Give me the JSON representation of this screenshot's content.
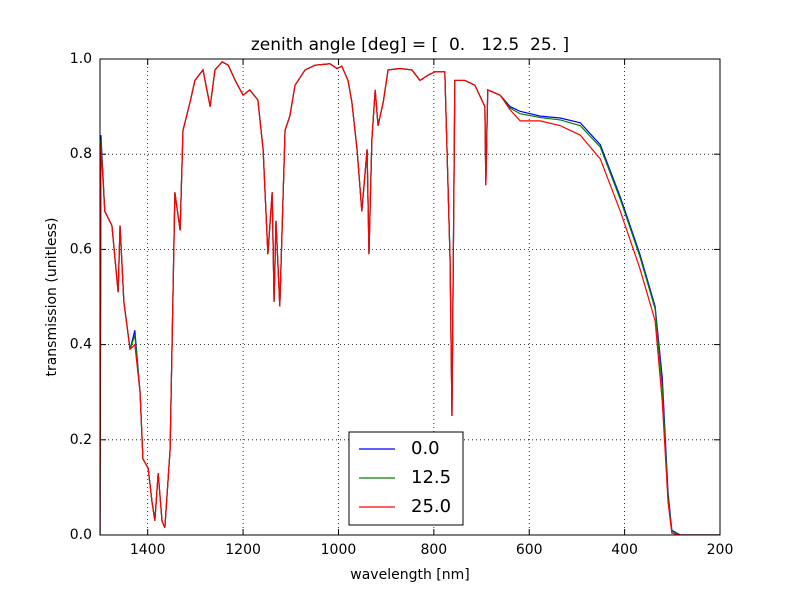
{
  "chart_data": {
    "type": "line",
    "title": "zenith angle [deg] = [  0.   12.5  25. ]",
    "xlabel": "wavelength [nm]",
    "ylabel": "transmission (unitless)",
    "xlim": [
      1500,
      200
    ],
    "ylim": [
      0,
      1
    ],
    "xticks": [
      1400,
      1200,
      1000,
      800,
      600,
      400,
      200
    ],
    "yticks": [
      {
        "value": 0,
        "label": "0.0"
      },
      0.2,
      0.4,
      0.6,
      0.8,
      {
        "value": 1,
        "label": "1.0"
      }
    ],
    "grid": true,
    "legend": "lower center",
    "x": [
      1500,
      1498,
      1490,
      1475,
      1462,
      1458,
      1450,
      1437,
      1427,
      1416,
      1410,
      1399,
      1391,
      1385,
      1378,
      1370,
      1364,
      1353,
      1343,
      1332,
      1326,
      1311,
      1301,
      1284,
      1269,
      1259,
      1244,
      1231,
      1217,
      1200,
      1186,
      1169,
      1158,
      1148,
      1139,
      1135,
      1131,
      1123,
      1112,
      1102,
      1091,
      1070,
      1049,
      1018,
      1003,
      993,
      980,
      972,
      961,
      951,
      940,
      936,
      930,
      923,
      917,
      906,
      896,
      871,
      846,
      829,
      812,
      798,
      777,
      766,
      762,
      756,
      735,
      714,
      693,
      691,
      687,
      661,
      640,
      619,
      577,
      535,
      493,
      451,
      409,
      368,
      336,
      321,
      309,
      301,
      283,
      200
    ],
    "series": [
      {
        "name": "0.0",
        "color": "#0000ff",
        "values": [
          0.0,
          0.84,
          0.68,
          0.65,
          0.51,
          0.65,
          0.49,
          0.39,
          0.43,
          0.3,
          0.16,
          0.14,
          0.07,
          0.03,
          0.13,
          0.03,
          0.015,
          0.18,
          0.72,
          0.64,
          0.85,
          0.91,
          0.955,
          0.977,
          0.9,
          0.977,
          0.994,
          0.987,
          0.956,
          0.924,
          0.935,
          0.914,
          0.81,
          0.59,
          0.72,
          0.49,
          0.66,
          0.48,
          0.85,
          0.88,
          0.945,
          0.977,
          0.987,
          0.99,
          0.98,
          0.985,
          0.955,
          0.91,
          0.81,
          0.68,
          0.81,
          0.59,
          0.83,
          0.935,
          0.86,
          0.91,
          0.977,
          0.98,
          0.977,
          0.955,
          0.966,
          0.973,
          0.973,
          0.58,
          0.25,
          0.955,
          0.955,
          0.945,
          0.9,
          0.735,
          0.935,
          0.924,
          0.9,
          0.89,
          0.88,
          0.876,
          0.866,
          0.82,
          0.71,
          0.59,
          0.48,
          0.33,
          0.09,
          0.01,
          0,
          0
        ]
      },
      {
        "name": "12.5",
        "color": "#008000",
        "values": [
          0.0,
          0.83,
          0.68,
          0.65,
          0.51,
          0.65,
          0.49,
          0.39,
          0.42,
          0.3,
          0.16,
          0.14,
          0.07,
          0.03,
          0.13,
          0.03,
          0.015,
          0.18,
          0.72,
          0.64,
          0.85,
          0.91,
          0.955,
          0.977,
          0.9,
          0.977,
          0.994,
          0.987,
          0.956,
          0.924,
          0.935,
          0.914,
          0.81,
          0.59,
          0.72,
          0.49,
          0.66,
          0.48,
          0.85,
          0.88,
          0.945,
          0.977,
          0.987,
          0.99,
          0.98,
          0.985,
          0.955,
          0.91,
          0.81,
          0.68,
          0.81,
          0.59,
          0.83,
          0.935,
          0.86,
          0.91,
          0.977,
          0.98,
          0.977,
          0.955,
          0.966,
          0.973,
          0.973,
          0.58,
          0.25,
          0.955,
          0.955,
          0.945,
          0.9,
          0.735,
          0.935,
          0.924,
          0.897,
          0.885,
          0.877,
          0.872,
          0.86,
          0.815,
          0.705,
          0.585,
          0.475,
          0.31,
          0.08,
          0.008,
          0,
          0
        ]
      },
      {
        "name": "25.0",
        "color": "#ff0000",
        "values": [
          0.0,
          0.82,
          0.68,
          0.65,
          0.51,
          0.65,
          0.49,
          0.39,
          0.4,
          0.3,
          0.16,
          0.14,
          0.07,
          0.03,
          0.13,
          0.03,
          0.015,
          0.18,
          0.72,
          0.64,
          0.85,
          0.91,
          0.955,
          0.977,
          0.9,
          0.977,
          0.994,
          0.987,
          0.956,
          0.924,
          0.935,
          0.914,
          0.81,
          0.59,
          0.72,
          0.49,
          0.66,
          0.48,
          0.85,
          0.88,
          0.945,
          0.977,
          0.987,
          0.99,
          0.98,
          0.985,
          0.955,
          0.91,
          0.81,
          0.68,
          0.81,
          0.59,
          0.83,
          0.935,
          0.86,
          0.91,
          0.977,
          0.98,
          0.977,
          0.955,
          0.966,
          0.973,
          0.973,
          0.58,
          0.25,
          0.955,
          0.955,
          0.945,
          0.9,
          0.735,
          0.935,
          0.924,
          0.893,
          0.87,
          0.87,
          0.86,
          0.84,
          0.79,
          0.68,
          0.56,
          0.45,
          0.28,
          0.07,
          0.004,
          0,
          0
        ]
      }
    ]
  }
}
